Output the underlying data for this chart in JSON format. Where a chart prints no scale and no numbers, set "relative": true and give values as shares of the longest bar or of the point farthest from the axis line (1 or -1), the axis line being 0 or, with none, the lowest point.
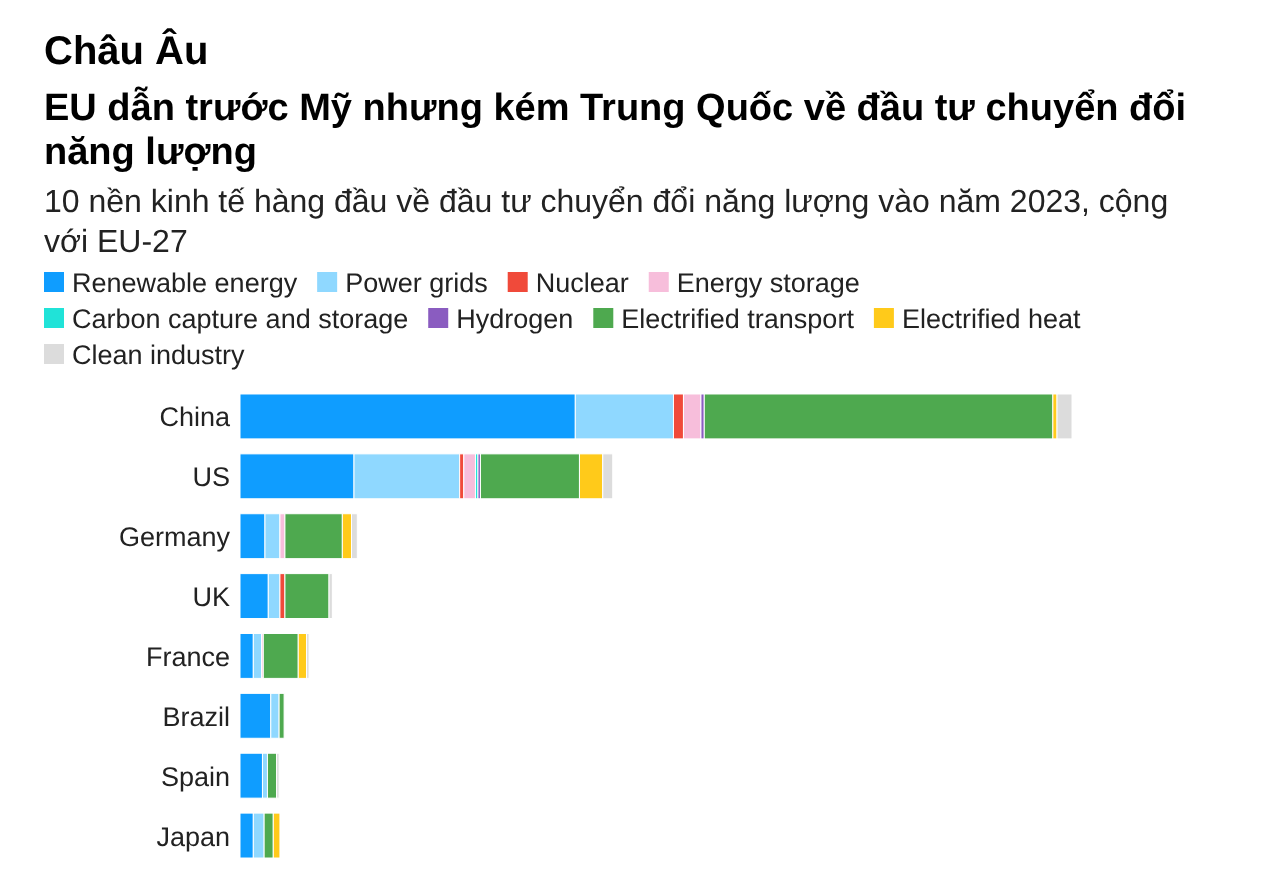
{
  "chart_data": {
    "type": "bar",
    "orientation": "horizontal",
    "stacked": true,
    "relative": true,
    "legend": "top",
    "annotations": [
      "Châu Âu"
    ],
    "title": "EU dẫn trước Mỹ nhưng kém Trung Quốc về đầu tư chuyển đổi năng lượng",
    "subtitle": "10 nền kinh tế hàng đầu về đầu tư chuyển đổi năng lượng vào năm 2023, cộng với EU-27",
    "categories": [
      "China",
      "US",
      "Germany",
      "UK",
      "France",
      "Brazil",
      "Spain",
      "Japan"
    ],
    "series": [
      {
        "name": "Renewable energy",
        "color": "#0f9dff",
        "values": [
          0.403,
          0.137,
          0.03,
          0.034,
          0.016,
          0.037,
          0.027,
          0.016
        ]
      },
      {
        "name": "Power grids",
        "color": "#8fd8ff",
        "values": [
          0.118,
          0.127,
          0.018,
          0.014,
          0.01,
          0.01,
          0.006,
          0.013
        ]
      },
      {
        "name": "Nuclear",
        "color": "#f04a3a",
        "values": [
          0.012,
          0.005,
          0,
          0.006,
          0,
          0,
          0,
          0
        ]
      },
      {
        "name": "Energy storage",
        "color": "#f7bedb",
        "values": [
          0.021,
          0.014,
          0.006,
          0,
          0.002,
          0,
          0,
          0
        ]
      },
      {
        "name": "Carbon capture and storage",
        "color": "#20e3d8",
        "values": [
          0,
          0.003,
          0,
          0,
          0,
          0,
          0,
          0
        ]
      },
      {
        "name": "Hydrogen",
        "color": "#8a5cc0",
        "values": [
          0.004,
          0.003,
          0,
          0,
          0,
          0,
          0,
          0
        ]
      },
      {
        "name": "Electrified transport",
        "color": "#4ea94f",
        "values": [
          0.419,
          0.119,
          0.069,
          0.053,
          0.042,
          0.006,
          0.011,
          0.011
        ]
      },
      {
        "name": "Electrified heat",
        "color": "#ffca1a",
        "values": [
          0.005,
          0.028,
          0.011,
          0,
          0.01,
          0,
          0,
          0.008
        ]
      },
      {
        "name": "Clean industry",
        "color": "#dcdcdc",
        "values": [
          0.018,
          0.012,
          0.007,
          0.004,
          0.003,
          0,
          0.003,
          0
        ]
      }
    ]
  }
}
